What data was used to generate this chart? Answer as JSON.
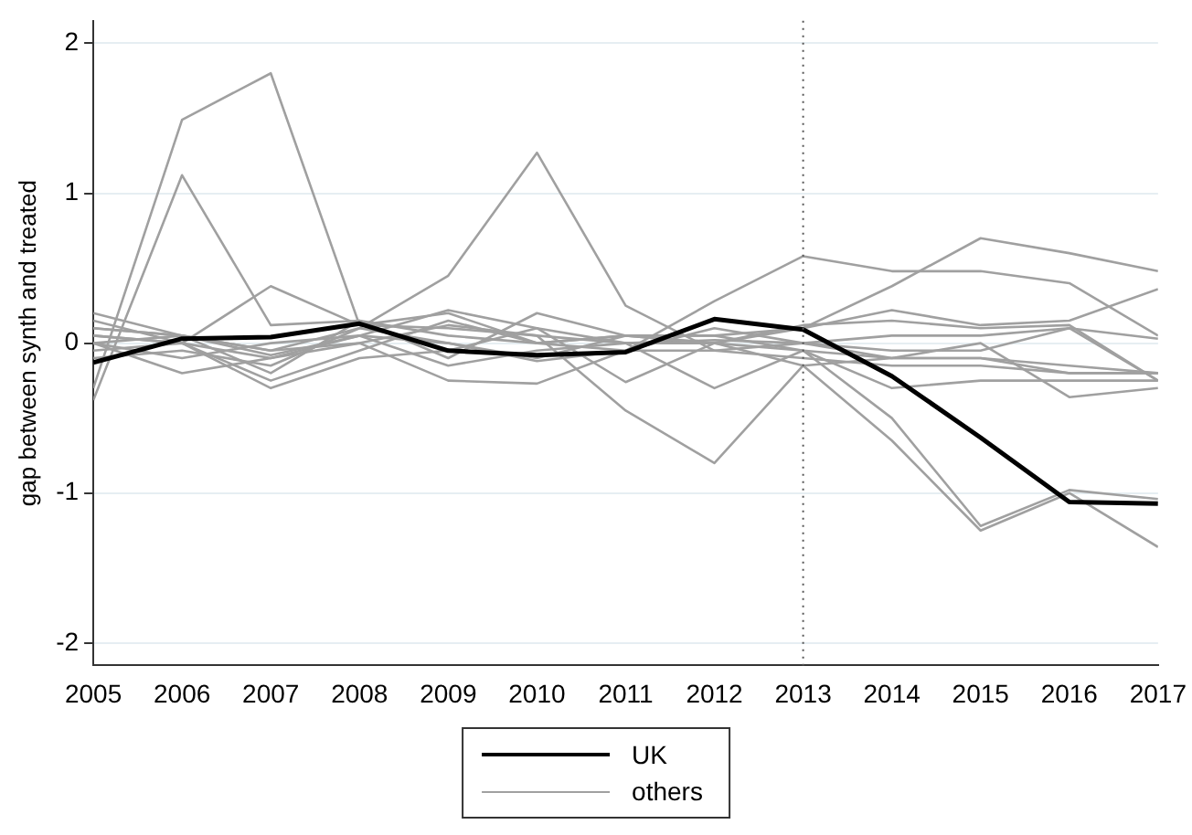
{
  "chart_data": {
    "type": "line",
    "ylabel": "gap between synth and treated",
    "x": [
      2005,
      2006,
      2007,
      2008,
      2009,
      2010,
      2011,
      2012,
      2013,
      2014,
      2015,
      2016,
      2017
    ],
    "xlim": [
      2005,
      2017
    ],
    "xticks": [
      2005,
      2006,
      2007,
      2008,
      2009,
      2010,
      2011,
      2012,
      2013,
      2014,
      2015,
      2016,
      2017
    ],
    "ylim": [
      -2.15,
      2.15
    ],
    "yticks": [
      -2,
      -1,
      0,
      1,
      2
    ],
    "grid": "y",
    "legend": "bottom",
    "marker": "none",
    "ref_lines": [
      {
        "axis": "x",
        "value": 2013,
        "line_style": "dotted",
        "color": "#555555"
      }
    ],
    "series": [
      {
        "color": "#a0a0a0",
        "values": [
          -0.3,
          1.49,
          1.8,
          0.12,
          0.1,
          0.05,
          0.0,
          0.02,
          0.0,
          -0.05,
          -0.05,
          0.1,
          -0.25
        ]
      },
      {
        "color": "#a0a0a0",
        "values": [
          -0.38,
          1.12,
          0.12,
          0.15,
          0.05,
          0.0,
          0.05,
          0.0,
          -0.05,
          -0.1,
          -0.1,
          -0.2,
          -0.2
        ]
      },
      {
        "color": "#a0a0a0",
        "values": [
          0.0,
          0.05,
          -0.05,
          0.1,
          0.45,
          1.27,
          0.25,
          -0.05,
          -0.1,
          -0.15,
          -0.15,
          -0.2,
          -0.2
        ]
      },
      {
        "color": "#a0a0a0",
        "values": [
          0.05,
          0.0,
          0.38,
          0.12,
          0.2,
          0.0,
          -0.05,
          0.1,
          0.0,
          -0.1,
          -0.1,
          -0.15,
          -0.2
        ]
      },
      {
        "color": "#a0a0a0",
        "values": [
          0.1,
          0.05,
          -0.05,
          0.0,
          0.12,
          0.05,
          -0.45,
          -0.8,
          -0.15,
          -0.65,
          -1.25,
          -1.0,
          -1.36
        ]
      },
      {
        "color": "#a0a0a0",
        "values": [
          0.0,
          -0.2,
          -0.1,
          0.0,
          -0.25,
          -0.27,
          -0.05,
          0.28,
          0.58,
          0.48,
          0.48,
          0.4,
          0.05
        ]
      },
      {
        "color": "#a0a0a0",
        "values": [
          -0.05,
          0.0,
          -0.25,
          -0.05,
          0.15,
          0.0,
          0.05,
          0.0,
          0.1,
          0.38,
          0.7,
          0.6,
          0.48
        ]
      },
      {
        "color": "#a0a0a0",
        "values": [
          0.15,
          0.0,
          -0.3,
          -0.1,
          -0.05,
          0.1,
          0.0,
          -0.3,
          -0.05,
          -0.5,
          -1.22,
          -0.98,
          -1.04
        ]
      },
      {
        "color": "#a0a0a0",
        "values": [
          0.2,
          0.05,
          -0.2,
          0.15,
          -0.1,
          0.2,
          0.05,
          0.05,
          0.1,
          0.22,
          0.12,
          0.15,
          0.36
        ]
      },
      {
        "color": "#a0a0a0",
        "values": [
          0.05,
          0.0,
          -0.1,
          0.05,
          0.22,
          0.1,
          -0.26,
          0.0,
          0.12,
          0.15,
          0.1,
          0.12,
          -0.25
        ]
      },
      {
        "color": "#a0a0a0",
        "values": [
          -0.1,
          -0.05,
          -0.15,
          0.1,
          0.0,
          -0.1,
          0.05,
          0.05,
          -0.05,
          -0.3,
          -0.25,
          -0.25,
          -0.25
        ]
      },
      {
        "color": "#a0a0a0",
        "values": [
          0.0,
          -0.1,
          0.0,
          0.05,
          -0.15,
          -0.05,
          0.0,
          0.0,
          -0.15,
          -0.1,
          0.0,
          -0.36,
          -0.3
        ]
      },
      {
        "name": "others",
        "color": "#a0a0a0",
        "values": [
          0.1,
          0.05,
          -0.08,
          0.05,
          0.0,
          -0.12,
          -0.05,
          -0.05,
          0.0,
          0.05,
          0.05,
          0.1,
          0.03
        ]
      },
      {
        "name": "UK",
        "color": "#000000",
        "values": [
          -0.13,
          0.03,
          0.04,
          0.13,
          -0.05,
          -0.08,
          -0.06,
          0.16,
          0.09,
          -0.22,
          -0.63,
          -1.06,
          -1.07
        ]
      }
    ]
  }
}
